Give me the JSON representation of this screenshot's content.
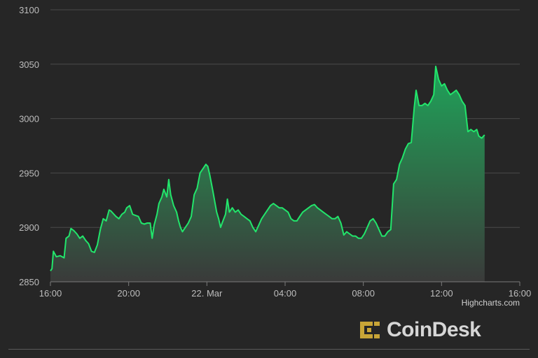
{
  "chart_data": {
    "type": "area",
    "title": "",
    "xlabel": "",
    "ylabel": "",
    "ylim": [
      2850,
      3100
    ],
    "yticks": [
      2850,
      2900,
      2950,
      3000,
      3050,
      3100
    ],
    "xticks": [
      {
        "label": "16:00",
        "hour": 0
      },
      {
        "label": "20:00",
        "hour": 4
      },
      {
        "label": "22. Mar",
        "hour": 8
      },
      {
        "label": "04:00",
        "hour": 12
      },
      {
        "label": "08:00",
        "hour": 16
      },
      {
        "label": "12:00",
        "hour": 20
      },
      {
        "label": "16:00",
        "hour": 24
      }
    ],
    "grid": true,
    "series": [
      {
        "color": "#22e56b",
        "points": [
          [
            0.0,
            2860
          ],
          [
            0.08,
            2862
          ],
          [
            0.15,
            2878
          ],
          [
            0.3,
            2873
          ],
          [
            0.5,
            2874
          ],
          [
            0.7,
            2872
          ],
          [
            0.8,
            2890
          ],
          [
            0.95,
            2892
          ],
          [
            1.05,
            2899
          ],
          [
            1.2,
            2897
          ],
          [
            1.35,
            2894
          ],
          [
            1.5,
            2890
          ],
          [
            1.65,
            2892
          ],
          [
            1.8,
            2888
          ],
          [
            1.95,
            2885
          ],
          [
            2.1,
            2878
          ],
          [
            2.25,
            2877
          ],
          [
            2.4,
            2884
          ],
          [
            2.55,
            2898
          ],
          [
            2.7,
            2908
          ],
          [
            2.85,
            2906
          ],
          [
            3.0,
            2916
          ],
          [
            3.1,
            2915
          ],
          [
            3.2,
            2913
          ],
          [
            3.35,
            2910
          ],
          [
            3.5,
            2908
          ],
          [
            3.65,
            2912
          ],
          [
            3.8,
            2914
          ],
          [
            3.9,
            2918
          ],
          [
            4.05,
            2920
          ],
          [
            4.2,
            2912
          ],
          [
            4.35,
            2911
          ],
          [
            4.5,
            2910
          ],
          [
            4.65,
            2904
          ],
          [
            4.8,
            2903
          ],
          [
            4.95,
            2904
          ],
          [
            5.1,
            2904
          ],
          [
            5.2,
            2890
          ],
          [
            5.3,
            2902
          ],
          [
            5.45,
            2912
          ],
          [
            5.55,
            2922
          ],
          [
            5.7,
            2928
          ],
          [
            5.8,
            2935
          ],
          [
            5.95,
            2928
          ],
          [
            6.05,
            2944
          ],
          [
            6.15,
            2930
          ],
          [
            6.3,
            2920
          ],
          [
            6.45,
            2914
          ],
          [
            6.55,
            2906
          ],
          [
            6.65,
            2900
          ],
          [
            6.75,
            2896
          ],
          [
            6.9,
            2900
          ],
          [
            7.05,
            2904
          ],
          [
            7.2,
            2910
          ],
          [
            7.35,
            2930
          ],
          [
            7.5,
            2936
          ],
          [
            7.65,
            2950
          ],
          [
            7.8,
            2954
          ],
          [
            7.95,
            2958
          ],
          [
            8.05,
            2956
          ],
          [
            8.15,
            2948
          ],
          [
            8.3,
            2934
          ],
          [
            8.4,
            2924
          ],
          [
            8.5,
            2914
          ],
          [
            8.6,
            2908
          ],
          [
            8.7,
            2900
          ],
          [
            8.8,
            2905
          ],
          [
            8.95,
            2912
          ],
          [
            9.05,
            2926
          ],
          [
            9.15,
            2914
          ],
          [
            9.3,
            2918
          ],
          [
            9.45,
            2914
          ],
          [
            9.6,
            2916
          ],
          [
            9.75,
            2912
          ],
          [
            9.9,
            2910
          ],
          [
            10.05,
            2908
          ],
          [
            10.2,
            2906
          ],
          [
            10.35,
            2900
          ],
          [
            10.5,
            2896
          ],
          [
            10.65,
            2902
          ],
          [
            10.8,
            2908
          ],
          [
            10.95,
            2912
          ],
          [
            11.1,
            2916
          ],
          [
            11.25,
            2920
          ],
          [
            11.4,
            2922
          ],
          [
            11.55,
            2920
          ],
          [
            11.7,
            2918
          ],
          [
            11.85,
            2918
          ],
          [
            12.0,
            2916
          ],
          [
            12.15,
            2914
          ],
          [
            12.3,
            2908
          ],
          [
            12.45,
            2906
          ],
          [
            12.6,
            2906
          ],
          [
            12.75,
            2910
          ],
          [
            12.9,
            2914
          ],
          [
            13.05,
            2916
          ],
          [
            13.2,
            2918
          ],
          [
            13.35,
            2920
          ],
          [
            13.5,
            2921
          ],
          [
            13.65,
            2918
          ],
          [
            13.8,
            2916
          ],
          [
            13.95,
            2914
          ],
          [
            14.1,
            2912
          ],
          [
            14.25,
            2910
          ],
          [
            14.4,
            2908
          ],
          [
            14.55,
            2908
          ],
          [
            14.7,
            2910
          ],
          [
            14.85,
            2904
          ],
          [
            15.0,
            2893
          ],
          [
            15.15,
            2896
          ],
          [
            15.3,
            2894
          ],
          [
            15.45,
            2892
          ],
          [
            15.6,
            2892
          ],
          [
            15.75,
            2890
          ],
          [
            15.9,
            2890
          ],
          [
            16.05,
            2894
          ],
          [
            16.2,
            2900
          ],
          [
            16.35,
            2906
          ],
          [
            16.5,
            2908
          ],
          [
            16.65,
            2904
          ],
          [
            16.8,
            2898
          ],
          [
            16.95,
            2892
          ],
          [
            17.1,
            2892
          ],
          [
            17.25,
            2896
          ],
          [
            17.4,
            2898
          ],
          [
            17.55,
            2940
          ],
          [
            17.7,
            2944
          ],
          [
            17.85,
            2958
          ],
          [
            18.0,
            2964
          ],
          [
            18.15,
            2972
          ],
          [
            18.3,
            2977
          ],
          [
            18.45,
            2978
          ],
          [
            18.6,
            3010
          ],
          [
            18.7,
            3026
          ],
          [
            18.85,
            3012
          ],
          [
            19.0,
            3012
          ],
          [
            19.15,
            3014
          ],
          [
            19.3,
            3012
          ],
          [
            19.45,
            3016
          ],
          [
            19.6,
            3022
          ],
          [
            19.7,
            3048
          ],
          [
            19.85,
            3036
          ],
          [
            20.0,
            3030
          ],
          [
            20.15,
            3032
          ],
          [
            20.3,
            3026
          ],
          [
            20.45,
            3022
          ],
          [
            20.6,
            3024
          ],
          [
            20.75,
            3026
          ],
          [
            20.9,
            3022
          ],
          [
            21.05,
            3016
          ],
          [
            21.2,
            3012
          ],
          [
            21.35,
            2988
          ],
          [
            21.5,
            2990
          ],
          [
            21.65,
            2988
          ],
          [
            21.8,
            2990
          ],
          [
            21.9,
            2984
          ],
          [
            22.05,
            2982
          ],
          [
            22.2,
            2985
          ]
        ]
      }
    ]
  },
  "credit": "Highcharts.com",
  "logo": {
    "text": "CoinDesk",
    "color": "#c8a537"
  }
}
